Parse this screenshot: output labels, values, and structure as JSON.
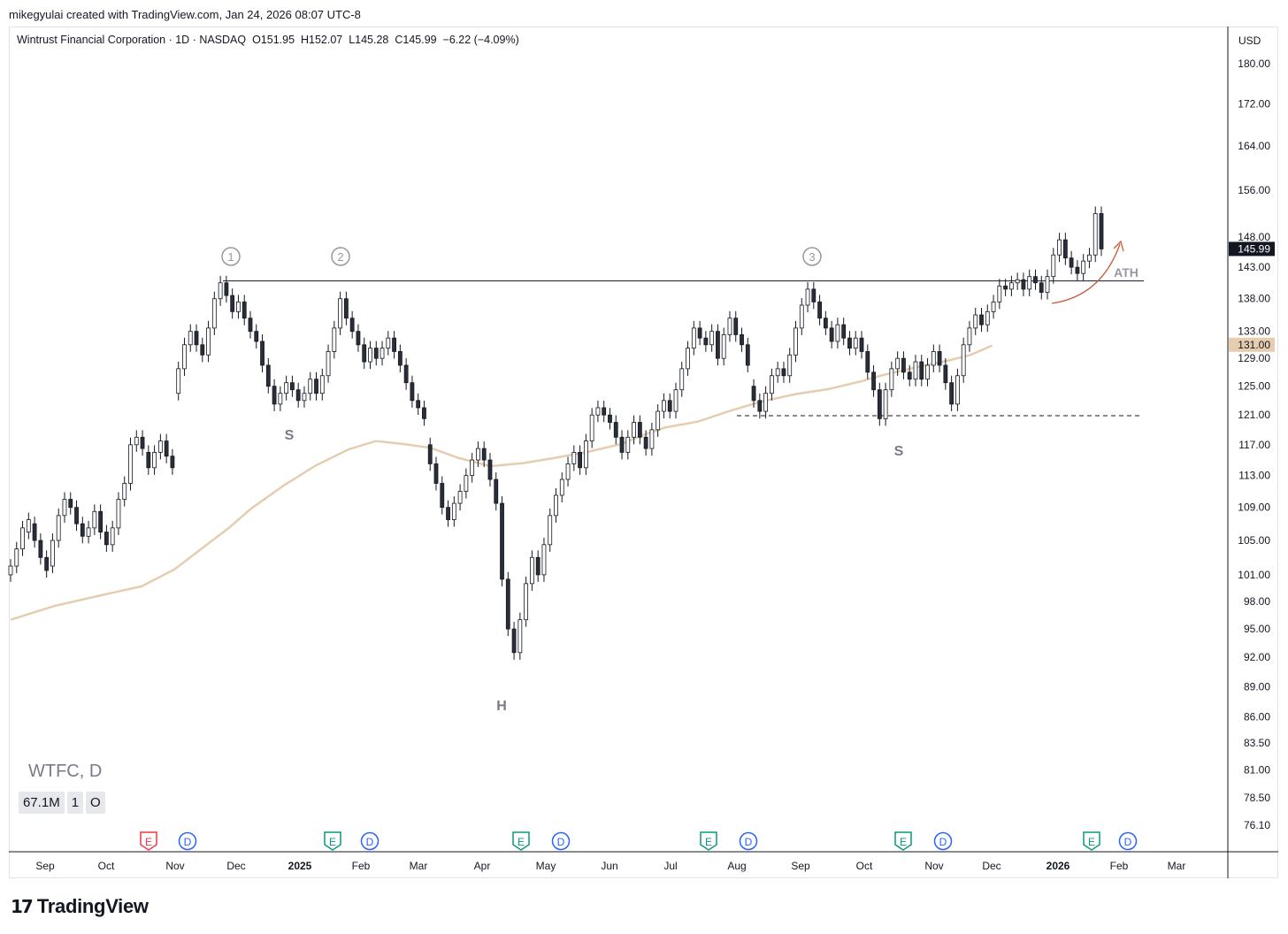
{
  "credit": "mikegyulai created with TradingView.com, Jan 24, 2026 08:07 UTC-8",
  "legend": {
    "name": "Wintrust Financial Corporation · 1D · NASDAQ",
    "open": "O151.95",
    "high": "H152.07",
    "low": "L145.28",
    "close": "C145.99",
    "change": "−6.22 (−4.09%)"
  },
  "currency": "USD",
  "ticker_label": "WTFC, D",
  "volume_row": [
    "67.1M",
    "1",
    "O"
  ],
  "brand": {
    "mark": "17",
    "word": "TradingView"
  },
  "chart_data": {
    "type": "candlestick",
    "symbol": "WTFC",
    "interval": "1D",
    "price_scale": "log",
    "y_ticks": [
      "180.00",
      "172.00",
      "164.00",
      "156.00",
      "148.00",
      "143.00",
      "138.00",
      "133.00",
      "129.00",
      "125.00",
      "121.00",
      "117.00",
      "113.00",
      "109.00",
      "105.00",
      "101.00",
      "98.00",
      "95.00",
      "92.00",
      "89.00",
      "86.00",
      "83.50",
      "81.00",
      "78.50",
      "76.10"
    ],
    "x_ticks": [
      {
        "label": "Sep",
        "bold": false
      },
      {
        "label": "Oct",
        "bold": false
      },
      {
        "label": "Nov",
        "bold": false
      },
      {
        "label": "Dec",
        "bold": false
      },
      {
        "label": "2025",
        "bold": true
      },
      {
        "label": "Feb",
        "bold": false
      },
      {
        "label": "Mar",
        "bold": false
      },
      {
        "label": "Apr",
        "bold": false
      },
      {
        "label": "May",
        "bold": false
      },
      {
        "label": "Jun",
        "bold": false
      },
      {
        "label": "Jul",
        "bold": false
      },
      {
        "label": "Aug",
        "bold": false
      },
      {
        "label": "Sep",
        "bold": false
      },
      {
        "label": "Oct",
        "bold": false
      },
      {
        "label": "Nov",
        "bold": false
      },
      {
        "label": "Dec",
        "bold": false
      },
      {
        "label": "2026",
        "bold": true
      },
      {
        "label": "Feb",
        "bold": false
      },
      {
        "label": "Mar",
        "bold": false
      }
    ],
    "last_price_label": "145.99",
    "ma_price_label": "131.00",
    "resistance_level": 140.8,
    "support_level": 120.9,
    "ma_path": [
      [
        0,
        96
      ],
      [
        0.04,
        97.5
      ],
      [
        0.08,
        98.6
      ],
      [
        0.12,
        99.7
      ],
      [
        0.15,
        101.6
      ],
      [
        0.18,
        104.5
      ],
      [
        0.2,
        106.5
      ],
      [
        0.22,
        108.8
      ],
      [
        0.25,
        111.7
      ],
      [
        0.28,
        114.3
      ],
      [
        0.31,
        116.4
      ],
      [
        0.335,
        117.5
      ],
      [
        0.36,
        117.1
      ],
      [
        0.385,
        116.6
      ],
      [
        0.41,
        115.3
      ],
      [
        0.44,
        114.2
      ],
      [
        0.47,
        114.6
      ],
      [
        0.5,
        115.3
      ],
      [
        0.53,
        116.1
      ],
      [
        0.56,
        117.1
      ],
      [
        0.58,
        118.3
      ],
      [
        0.6,
        119.3
      ],
      [
        0.63,
        120.1
      ],
      [
        0.66,
        121.6
      ],
      [
        0.69,
        122.9
      ],
      [
        0.72,
        123.9
      ],
      [
        0.75,
        124.6
      ],
      [
        0.78,
        125.7
      ],
      [
        0.8,
        126.6
      ],
      [
        0.83,
        127.7
      ],
      [
        0.86,
        128.7
      ],
      [
        0.88,
        129.5
      ],
      [
        0.9,
        130.9
      ]
    ],
    "candles_compact": [
      [
        0,
        101,
        102
      ],
      [
        0.5,
        102,
        104
      ],
      [
        1,
        104,
        106.5
      ],
      [
        1.5,
        106,
        107.5
      ],
      [
        2,
        107,
        105
      ],
      [
        2.5,
        105,
        103
      ],
      [
        3,
        103,
        101.5
      ],
      [
        3.5,
        102,
        105
      ],
      [
        4,
        105,
        108
      ],
      [
        4.5,
        108,
        110
      ],
      [
        5,
        110,
        109
      ],
      [
        5.5,
        109,
        107
      ],
      [
        6,
        107,
        105.5
      ],
      [
        6.5,
        105.5,
        106.5
      ],
      [
        7,
        106.5,
        108.5
      ],
      [
        7.5,
        108.5,
        106
      ],
      [
        8,
        106,
        104.5
      ],
      [
        8.5,
        104.5,
        106.5
      ],
      [
        9,
        106.5,
        110
      ],
      [
        9.5,
        110,
        112
      ],
      [
        10,
        112,
        117
      ],
      [
        10.5,
        117,
        118
      ],
      [
        11,
        118,
        116.5
      ],
      [
        11.5,
        116,
        114
      ],
      [
        12,
        114,
        116
      ],
      [
        12.5,
        116,
        117.5
      ],
      [
        13,
        117.5,
        115.5
      ],
      [
        13.5,
        115.5,
        114
      ],
      [
        14,
        124,
        127.5
      ],
      [
        14.5,
        127.5,
        131
      ],
      [
        15,
        131,
        133
      ],
      [
        15.5,
        133,
        131
      ],
      [
        16,
        131,
        129.5
      ],
      [
        16.5,
        129.5,
        133.5
      ],
      [
        17,
        133.5,
        138
      ],
      [
        17.5,
        138,
        140.5
      ],
      [
        18,
        140.5,
        138.5
      ],
      [
        18.5,
        138.5,
        136
      ],
      [
        19,
        136,
        137.5
      ],
      [
        19.5,
        137.5,
        135
      ],
      [
        20,
        135,
        133
      ],
      [
        20.5,
        133,
        131.5
      ],
      [
        21,
        131.5,
        128
      ],
      [
        21.5,
        128,
        125
      ],
      [
        22,
        125,
        122.5
      ],
      [
        22.5,
        122.5,
        124
      ],
      [
        23,
        124,
        125.5
      ],
      [
        23.5,
        125.5,
        124.5
      ],
      [
        24,
        124.5,
        123
      ],
      [
        24.5,
        123,
        124
      ],
      [
        25,
        124,
        126
      ],
      [
        25.5,
        126,
        124
      ],
      [
        26,
        124,
        126.5
      ],
      [
        26.5,
        126.5,
        130
      ],
      [
        27,
        130,
        133.5
      ],
      [
        27.5,
        133.5,
        138
      ],
      [
        28,
        138,
        135
      ],
      [
        28.5,
        135,
        133
      ],
      [
        29,
        133,
        131
      ],
      [
        29.5,
        131,
        128.5
      ],
      [
        30,
        128.5,
        130.5
      ],
      [
        30.5,
        130.5,
        129
      ],
      [
        31,
        129,
        130.5
      ],
      [
        31.5,
        130.5,
        132
      ],
      [
        32,
        132,
        130
      ],
      [
        32.5,
        130,
        128
      ],
      [
        33,
        128,
        125.5
      ],
      [
        33.5,
        125.5,
        123
      ],
      [
        34,
        123,
        122
      ],
      [
        34.5,
        122,
        120.5
      ],
      [
        35,
        117,
        114.5
      ],
      [
        35.5,
        114.5,
        112
      ],
      [
        36,
        112,
        109
      ],
      [
        36.5,
        109,
        107.5
      ],
      [
        37,
        107.5,
        109.5
      ],
      [
        37.5,
        109.5,
        111
      ],
      [
        38,
        111,
        113
      ],
      [
        38.5,
        113,
        115
      ],
      [
        39,
        115,
        116.5
      ],
      [
        39.5,
        116.5,
        115
      ],
      [
        40,
        115,
        112.5
      ],
      [
        40.5,
        112.5,
        109.5
      ],
      [
        41,
        109.5,
        100.5
      ],
      [
        41.5,
        100.5,
        95
      ],
      [
        42,
        95,
        92.5
      ],
      [
        42.5,
        92.5,
        96
      ],
      [
        43,
        96,
        100
      ],
      [
        43.5,
        100,
        103
      ],
      [
        44,
        103,
        101
      ],
      [
        44.5,
        101,
        104.5
      ],
      [
        45,
        104.5,
        108
      ],
      [
        45.5,
        108,
        110.5
      ],
      [
        46,
        110.5,
        112.5
      ],
      [
        46.5,
        112.5,
        114.5
      ],
      [
        47,
        114.5,
        116
      ],
      [
        47.5,
        116,
        114
      ],
      [
        48,
        114,
        117.5
      ],
      [
        48.5,
        117.5,
        121
      ],
      [
        49,
        121,
        122
      ],
      [
        49.5,
        122,
        121
      ],
      [
        50,
        121,
        120
      ],
      [
        50.5,
        120,
        118
      ],
      [
        51,
        118,
        116
      ],
      [
        51.5,
        116,
        118
      ],
      [
        52,
        118,
        120
      ],
      [
        52.5,
        120,
        118
      ],
      [
        53,
        118,
        116.5
      ],
      [
        53.5,
        116.5,
        119
      ],
      [
        54,
        119,
        121.5
      ],
      [
        54.5,
        121.5,
        123
      ],
      [
        55,
        123,
        121.5
      ],
      [
        55.5,
        121.5,
        124.5
      ],
      [
        56,
        124.5,
        127.5
      ],
      [
        56.5,
        127.5,
        130.5
      ],
      [
        57,
        130.5,
        133.5
      ],
      [
        57.5,
        133.5,
        132
      ],
      [
        58,
        132,
        131
      ],
      [
        58.5,
        131,
        133
      ],
      [
        59,
        133,
        129
      ],
      [
        59.5,
        129,
        132.5
      ],
      [
        60,
        132.5,
        135
      ],
      [
        60.5,
        135,
        132.5
      ],
      [
        61,
        132.5,
        131
      ],
      [
        61.5,
        131,
        128
      ],
      [
        62,
        125,
        123
      ],
      [
        62.5,
        123,
        121.5
      ],
      [
        63,
        121.5,
        124
      ],
      [
        63.5,
        124,
        126.5
      ],
      [
        64,
        126.5,
        127.5
      ],
      [
        64.5,
        127.5,
        126.5
      ],
      [
        65,
        126.5,
        129.5
      ],
      [
        65.5,
        129.5,
        133.5
      ],
      [
        66,
        133.5,
        137
      ],
      [
        66.5,
        137,
        139.5
      ],
      [
        67,
        139.5,
        137.5
      ],
      [
        67.5,
        137.5,
        135
      ],
      [
        68,
        135,
        133.5
      ],
      [
        68.5,
        133.5,
        131.5
      ],
      [
        69,
        131.5,
        134
      ],
      [
        69.5,
        134,
        132
      ],
      [
        70,
        132,
        130.5
      ],
      [
        70.5,
        130.5,
        132
      ],
      [
        71,
        132,
        130
      ],
      [
        71.5,
        130,
        127
      ],
      [
        72,
        127,
        124.5
      ],
      [
        72.5,
        124.5,
        120.5
      ],
      [
        73,
        120.5,
        124.5
      ],
      [
        73.5,
        124.5,
        127.5
      ],
      [
        74,
        127.5,
        129
      ],
      [
        74.5,
        129,
        127
      ],
      [
        75,
        127,
        126
      ],
      [
        75.5,
        126,
        128.5
      ],
      [
        76,
        128.5,
        126
      ],
      [
        76.5,
        126,
        128
      ],
      [
        77,
        128,
        130
      ],
      [
        77.5,
        130,
        128
      ],
      [
        78,
        128,
        125.5
      ],
      [
        78.5,
        125.5,
        122.5
      ],
      [
        79,
        122.5,
        126.5
      ],
      [
        79.5,
        126.5,
        131
      ],
      [
        80,
        131,
        133.5
      ],
      [
        80.5,
        133.5,
        135.5
      ],
      [
        81,
        135.5,
        134
      ],
      [
        81.5,
        134,
        136
      ],
      [
        82,
        136,
        137.5
      ],
      [
        82.5,
        137.5,
        140
      ],
      [
        83,
        140,
        139.5
      ],
      [
        83.5,
        139.5,
        140.5
      ],
      [
        84,
        140.5,
        141
      ],
      [
        84.5,
        141,
        139.5
      ],
      [
        85,
        139.5,
        141.5
      ],
      [
        85.5,
        141.5,
        140.5
      ],
      [
        86,
        140.5,
        139
      ],
      [
        86.5,
        139,
        141.5
      ],
      [
        87,
        141.5,
        145
      ],
      [
        87.5,
        145,
        147.5
      ],
      [
        88,
        147.5,
        144.5
      ],
      [
        88.5,
        144.5,
        143
      ],
      [
        89,
        143,
        142
      ],
      [
        89.5,
        142,
        144
      ],
      [
        90,
        144,
        145
      ],
      [
        90.5,
        145,
        151.95
      ],
      [
        91,
        151.95,
        145.99
      ]
    ]
  }
}
